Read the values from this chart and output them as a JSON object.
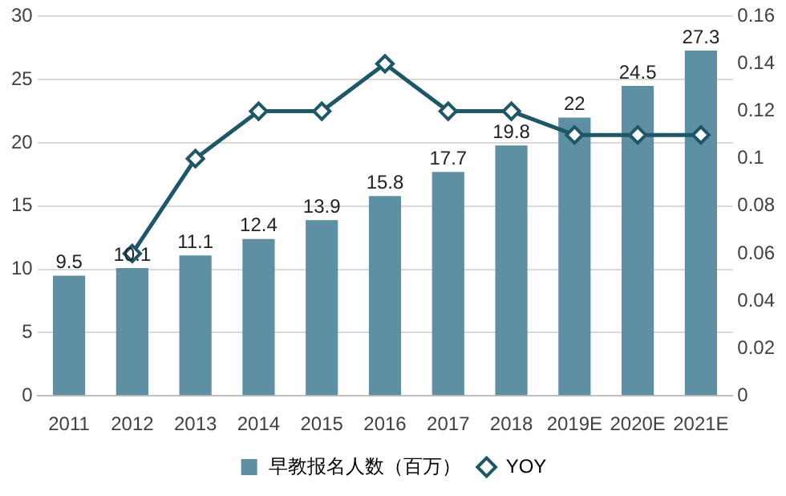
{
  "chart_data": {
    "type": "bar",
    "categories": [
      "2011",
      "2012",
      "2013",
      "2014",
      "2015",
      "2016",
      "2017",
      "2018",
      "2019E",
      "2020E",
      "2021E"
    ],
    "series": [
      {
        "name": "早教报名人数（百万）",
        "color": "#5e8fa3",
        "values": [
          9.5,
          10.1,
          11.1,
          12.4,
          13.9,
          15.8,
          17.7,
          19.8,
          22,
          24.5,
          27.3
        ],
        "value_labels": [
          "9.5",
          "10.1",
          "11.1",
          "12.4",
          "13.9",
          "15.8",
          "17.7",
          "19.8",
          "22",
          "24.5",
          "27.3"
        ]
      },
      {
        "name": "YOY",
        "type": "line",
        "axis": "y2",
        "color": "#1e5768",
        "values": [
          null,
          0.06,
          0.1,
          0.12,
          0.12,
          0.14,
          0.12,
          0.12,
          0.11,
          0.11,
          0.11
        ]
      }
    ],
    "ylim": [
      0,
      30
    ],
    "yticks": [
      0,
      5,
      10,
      15,
      20,
      25,
      30
    ],
    "y2lim": [
      0,
      0.16
    ],
    "y2ticks": [
      0,
      0.02,
      0.04,
      0.06,
      0.08,
      0.1,
      0.12,
      0.14,
      0.16
    ],
    "grid": "y",
    "legend": "bottom",
    "marker": "diamond",
    "line_style": "solid"
  }
}
